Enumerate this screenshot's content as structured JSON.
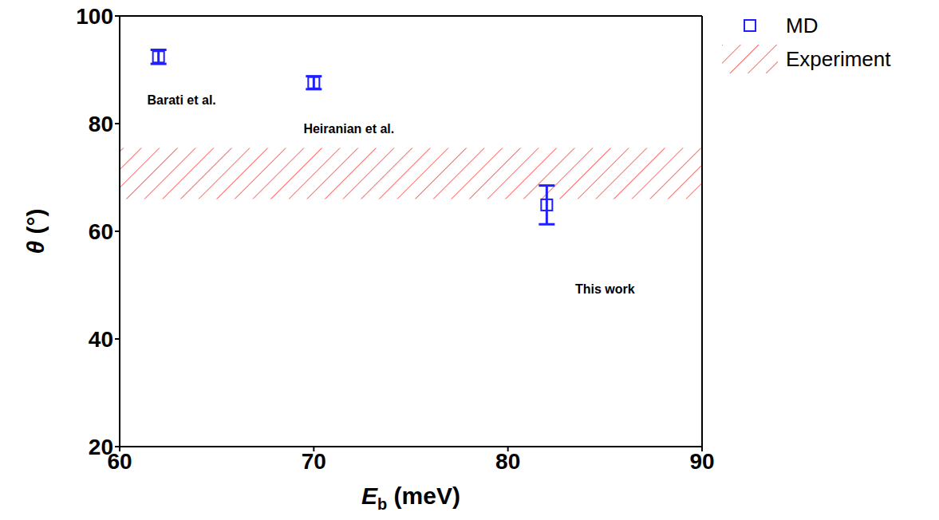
{
  "chart_data": {
    "type": "scatter",
    "xlabel": {
      "symbol": "E",
      "subscript": "b",
      "unit": "(meV)"
    },
    "ylabel": {
      "symbol": "θ",
      "unit": "(°)"
    },
    "xlim": [
      60,
      90
    ],
    "xticks": [
      60,
      70,
      80,
      90
    ],
    "ylim": [
      20,
      100
    ],
    "yticks": [
      20,
      40,
      60,
      80,
      100
    ],
    "grid": false,
    "legend": "upper right",
    "series": [
      {
        "name": "MD",
        "color": "#1f1fff",
        "marker": "square",
        "x": [
          62,
          70,
          82
        ],
        "values": [
          92.4,
          87.6,
          64.9
        ],
        "errors": [
          1.3,
          1.2,
          3.6
        ],
        "point_labels": [
          "Barati et al.",
          "Heiranian et al.",
          "This work"
        ]
      }
    ],
    "bands": [
      {
        "name": "Experiment",
        "color": "#ff3b3b",
        "y_range": [
          66,
          75.5
        ]
      }
    ]
  }
}
